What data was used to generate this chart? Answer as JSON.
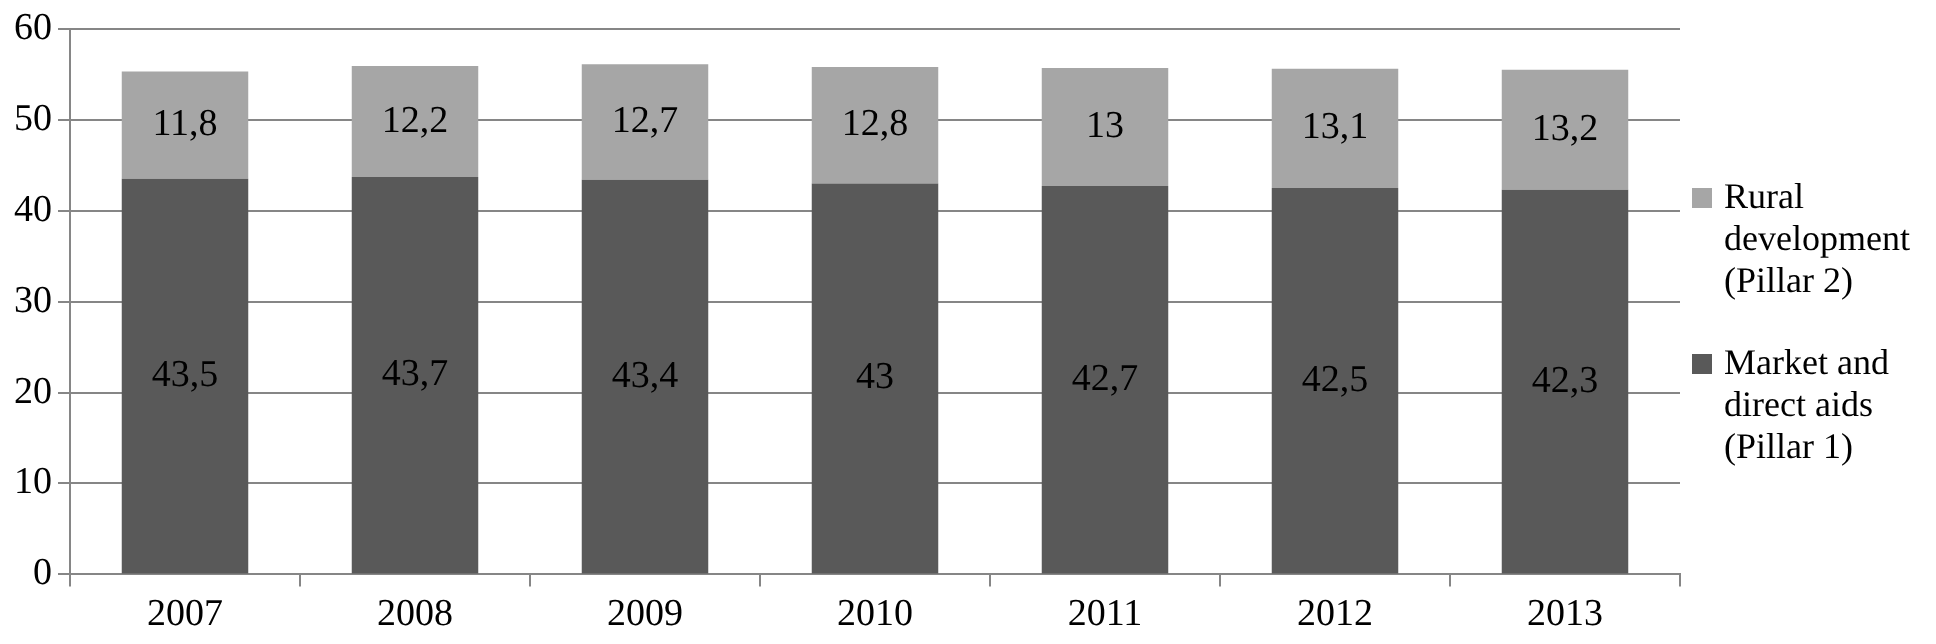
{
  "chart_data": {
    "type": "bar",
    "stacked": true,
    "categories": [
      "2007",
      "2008",
      "2009",
      "2010",
      "2011",
      "2012",
      "2013"
    ],
    "series": [
      {
        "name": "Market and direct aids (Pillar 1)",
        "color": "#595959",
        "values": [
          43.5,
          43.7,
          43.4,
          43,
          42.7,
          42.5,
          42.3
        ],
        "value_labels": [
          "43,5",
          "43,7",
          "43,4",
          "43",
          "42,7",
          "42,5",
          "42,3"
        ]
      },
      {
        "name": "Rural development (Pillar 2)",
        "color": "#a6a6a6",
        "values": [
          11.8,
          12.2,
          12.7,
          12.8,
          13,
          13.1,
          13.2
        ],
        "value_labels": [
          "11,8",
          "12,2",
          "12,7",
          "12,8",
          "13",
          "13,1",
          "13,2"
        ]
      }
    ],
    "ylim": [
      0,
      60
    ],
    "yticks": [
      0,
      10,
      20,
      30,
      40,
      50,
      60
    ],
    "grid": "y",
    "legend": "right"
  }
}
